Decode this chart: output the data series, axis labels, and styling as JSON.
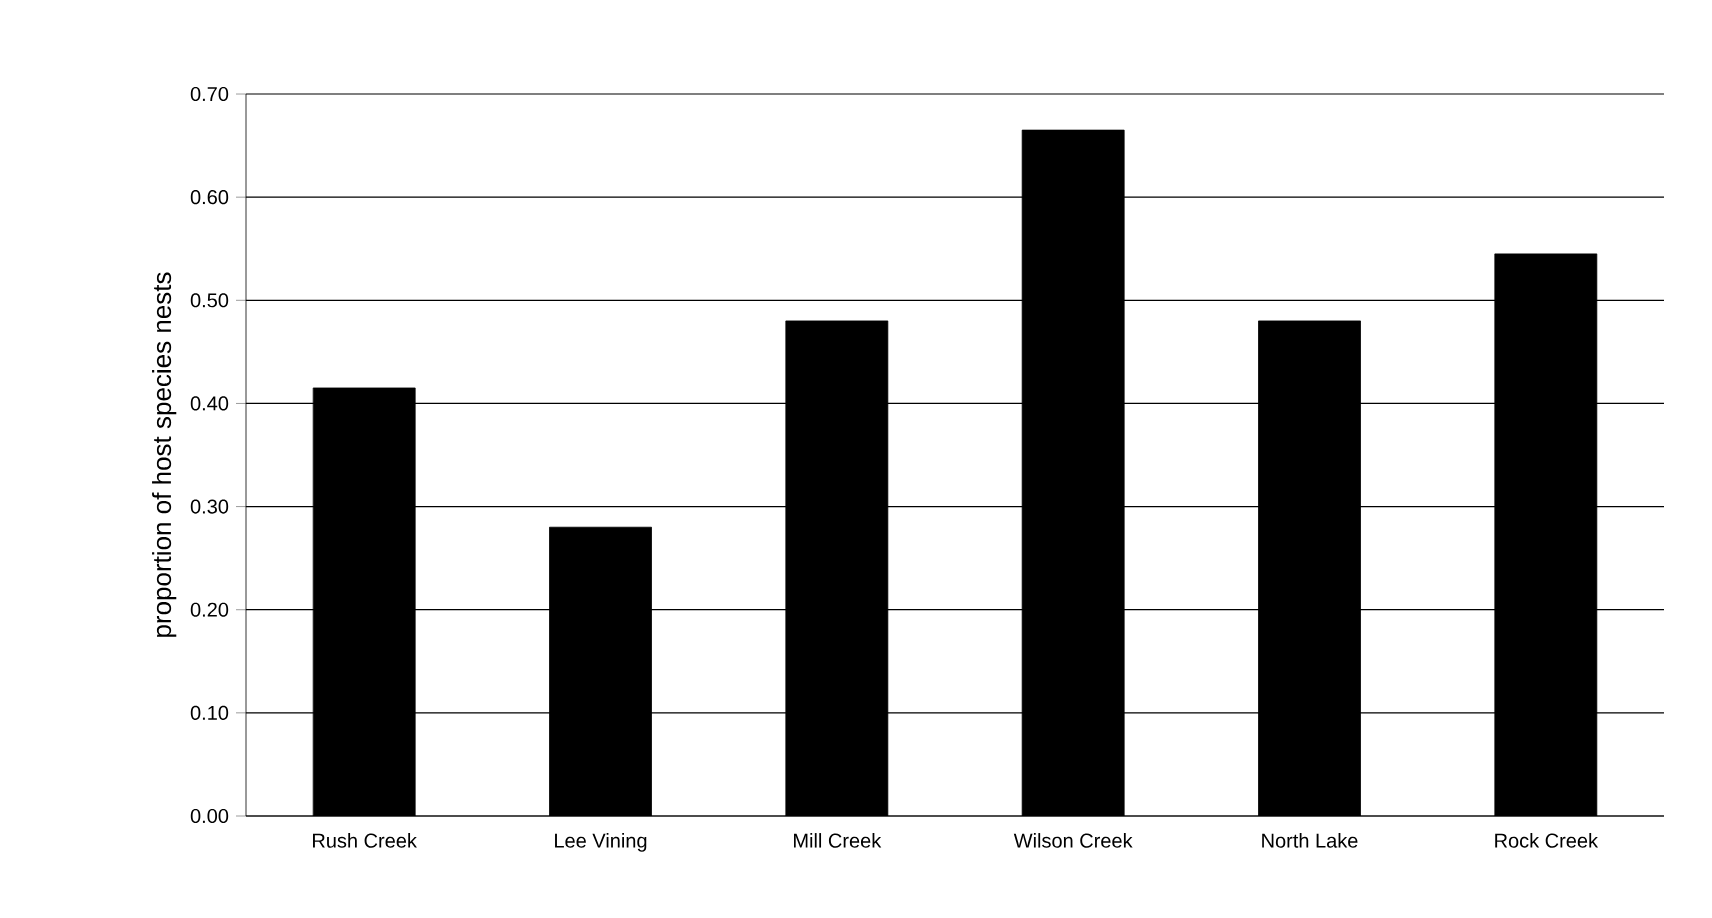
{
  "chart_data": {
    "type": "bar",
    "ylabel": "proportion of host species nests",
    "categories": [
      "Rush Creek",
      "Lee Vining",
      "Mill Creek",
      "Wilson Creek",
      "North Lake",
      "Rock Creek"
    ],
    "values": [
      0.415,
      0.28,
      0.48,
      0.665,
      0.48,
      0.545
    ],
    "color": "#000000",
    "ylim": [
      0,
      0.7
    ],
    "yticks": [
      {
        "value": 0,
        "label": "0.00"
      },
      {
        "value": 0.1,
        "label": "0.10"
      },
      {
        "value": 0.2,
        "label": "0.20"
      },
      {
        "value": 0.3,
        "label": "0.30"
      },
      {
        "value": 0.4,
        "label": "0.40"
      },
      {
        "value": 0.5,
        "label": "0.50"
      },
      {
        "value": 0.6,
        "label": "0.60"
      },
      {
        "value": 0.7,
        "label": "0.70"
      }
    ],
    "grid": "y"
  }
}
